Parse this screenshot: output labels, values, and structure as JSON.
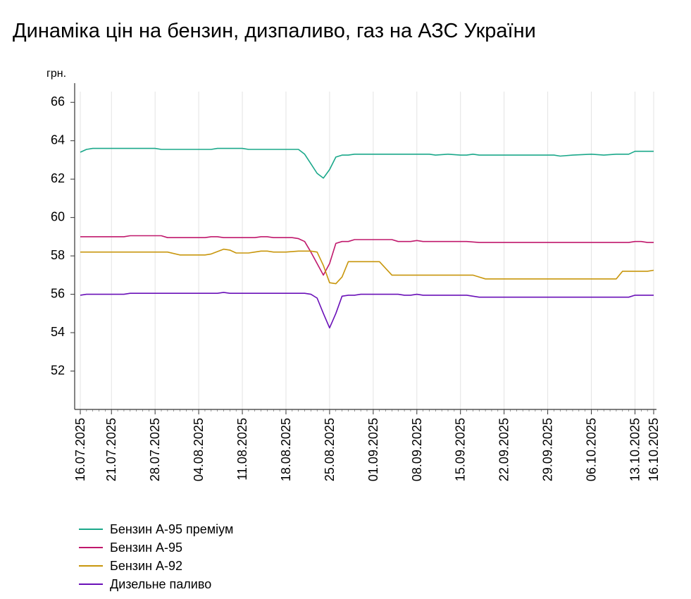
{
  "title": "Динаміка цін на бензин, дизпаливо, газ на АЗС України",
  "chart_data": {
    "type": "line",
    "title": "Динаміка цін на бензин, дизпаливо, газ на АЗС України",
    "ylabel": "грн.",
    "xlabel": "",
    "ylim": [
      50,
      67
    ],
    "yticks": [
      52,
      54,
      56,
      58,
      60,
      62,
      64,
      66
    ],
    "xlim": [
      "2025-07-16",
      "2025-10-16"
    ],
    "xticks": [
      "16.07.2025",
      "21.07.2025",
      "28.07.2025",
      "04.08.2025",
      "11.08.2025",
      "18.08.2025",
      "25.08.2025",
      "01.09.2025",
      "08.09.2025",
      "15.09.2025",
      "22.09.2025",
      "29.09.2025",
      "06.10.2025",
      "13.10.2025",
      "16.10.2025"
    ],
    "grid": "vertical",
    "legend": "bottom-left",
    "series": [
      {
        "name": "Бензин А-95 преміум",
        "color": "#1aa88a",
        "points": [
          [
            "2025-07-16",
            63.4
          ],
          [
            "2025-07-17",
            63.55
          ],
          [
            "2025-07-18",
            63.6
          ],
          [
            "2025-07-28",
            63.6
          ],
          [
            "2025-07-29",
            63.55
          ],
          [
            "2025-08-06",
            63.55
          ],
          [
            "2025-08-07",
            63.6
          ],
          [
            "2025-08-11",
            63.6
          ],
          [
            "2025-08-12",
            63.55
          ],
          [
            "2025-08-20",
            63.55
          ],
          [
            "2025-08-21",
            63.3
          ],
          [
            "2025-08-22",
            62.8
          ],
          [
            "2025-08-23",
            62.3
          ],
          [
            "2025-08-24",
            62.05
          ],
          [
            "2025-08-25",
            62.5
          ],
          [
            "2025-08-26",
            63.15
          ],
          [
            "2025-08-27",
            63.25
          ],
          [
            "2025-08-28",
            63.25
          ],
          [
            "2025-08-29",
            63.3
          ],
          [
            "2025-09-10",
            63.3
          ],
          [
            "2025-09-11",
            63.25
          ],
          [
            "2025-09-13",
            63.3
          ],
          [
            "2025-09-15",
            63.25
          ],
          [
            "2025-09-16",
            63.25
          ],
          [
            "2025-09-17",
            63.3
          ],
          [
            "2025-09-18",
            63.25
          ],
          [
            "2025-09-30",
            63.25
          ],
          [
            "2025-10-01",
            63.2
          ],
          [
            "2025-10-03",
            63.25
          ],
          [
            "2025-10-06",
            63.3
          ],
          [
            "2025-10-08",
            63.25
          ],
          [
            "2025-10-10",
            63.3
          ],
          [
            "2025-10-12",
            63.3
          ],
          [
            "2025-10-13",
            63.45
          ],
          [
            "2025-10-16",
            63.45
          ]
        ]
      },
      {
        "name": "Бензин А-95",
        "color": "#c0186c",
        "points": [
          [
            "2025-07-16",
            59.0
          ],
          [
            "2025-07-23",
            59.0
          ],
          [
            "2025-07-24",
            59.05
          ],
          [
            "2025-07-29",
            59.05
          ],
          [
            "2025-07-30",
            58.95
          ],
          [
            "2025-08-05",
            58.95
          ],
          [
            "2025-08-06",
            59.0
          ],
          [
            "2025-08-07",
            59.0
          ],
          [
            "2025-08-08",
            58.95
          ],
          [
            "2025-08-13",
            58.95
          ],
          [
            "2025-08-14",
            59.0
          ],
          [
            "2025-08-15",
            59.0
          ],
          [
            "2025-08-16",
            58.95
          ],
          [
            "2025-08-19",
            58.95
          ],
          [
            "2025-08-20",
            58.9
          ],
          [
            "2025-08-21",
            58.75
          ],
          [
            "2025-08-22",
            58.2
          ],
          [
            "2025-08-23",
            57.6
          ],
          [
            "2025-08-24",
            57.0
          ],
          [
            "2025-08-25",
            57.6
          ],
          [
            "2025-08-26",
            58.65
          ],
          [
            "2025-08-27",
            58.75
          ],
          [
            "2025-08-28",
            58.75
          ],
          [
            "2025-08-29",
            58.85
          ],
          [
            "2025-09-04",
            58.85
          ],
          [
            "2025-09-05",
            58.75
          ],
          [
            "2025-09-07",
            58.75
          ],
          [
            "2025-09-08",
            58.8
          ],
          [
            "2025-09-09",
            58.75
          ],
          [
            "2025-09-16",
            58.75
          ],
          [
            "2025-09-18",
            58.7
          ],
          [
            "2025-10-12",
            58.7
          ],
          [
            "2025-10-13",
            58.75
          ],
          [
            "2025-10-14",
            58.75
          ],
          [
            "2025-10-15",
            58.7
          ],
          [
            "2025-10-16",
            58.7
          ]
        ]
      },
      {
        "name": "Бензин А-92",
        "color": "#c8960c",
        "points": [
          [
            "2025-07-16",
            58.2
          ],
          [
            "2025-07-30",
            58.2
          ],
          [
            "2025-08-01",
            58.05
          ],
          [
            "2025-08-05",
            58.05
          ],
          [
            "2025-08-06",
            58.1
          ],
          [
            "2025-08-08",
            58.35
          ],
          [
            "2025-08-09",
            58.3
          ],
          [
            "2025-08-10",
            58.15
          ],
          [
            "2025-08-12",
            58.15
          ],
          [
            "2025-08-13",
            58.2
          ],
          [
            "2025-08-14",
            58.25
          ],
          [
            "2025-08-15",
            58.25
          ],
          [
            "2025-08-16",
            58.2
          ],
          [
            "2025-08-18",
            58.2
          ],
          [
            "2025-08-20",
            58.25
          ],
          [
            "2025-08-22",
            58.25
          ],
          [
            "2025-08-23",
            58.2
          ],
          [
            "2025-08-24",
            57.5
          ],
          [
            "2025-08-25",
            56.6
          ],
          [
            "2025-08-26",
            56.55
          ],
          [
            "2025-08-27",
            56.9
          ],
          [
            "2025-08-28",
            57.7
          ],
          [
            "2025-08-29",
            57.7
          ],
          [
            "2025-09-02",
            57.7
          ],
          [
            "2025-09-03",
            57.35
          ],
          [
            "2025-09-04",
            57.0
          ],
          [
            "2025-09-14",
            57.0
          ],
          [
            "2025-09-17",
            57.0
          ],
          [
            "2025-09-18",
            56.9
          ],
          [
            "2025-09-19",
            56.8
          ],
          [
            "2025-10-09",
            56.8
          ],
          [
            "2025-10-10",
            56.8
          ],
          [
            "2025-10-11",
            57.2
          ],
          [
            "2025-10-12",
            57.2
          ],
          [
            "2025-10-15",
            57.2
          ],
          [
            "2025-10-16",
            57.25
          ]
        ]
      },
      {
        "name": "Дизельне паливо",
        "color": "#6a10b8",
        "points": [
          [
            "2025-07-16",
            55.95
          ],
          [
            "2025-07-17",
            56.0
          ],
          [
            "2025-07-23",
            56.0
          ],
          [
            "2025-07-24",
            56.05
          ],
          [
            "2025-08-07",
            56.05
          ],
          [
            "2025-08-08",
            56.1
          ],
          [
            "2025-08-09",
            56.05
          ],
          [
            "2025-08-21",
            56.05
          ],
          [
            "2025-08-22",
            56.0
          ],
          [
            "2025-08-23",
            55.8
          ],
          [
            "2025-08-24",
            55.0
          ],
          [
            "2025-08-25",
            54.25
          ],
          [
            "2025-08-26",
            55.0
          ],
          [
            "2025-08-27",
            55.9
          ],
          [
            "2025-08-28",
            55.95
          ],
          [
            "2025-08-29",
            55.95
          ],
          [
            "2025-08-30",
            56.0
          ],
          [
            "2025-09-05",
            56.0
          ],
          [
            "2025-09-06",
            55.95
          ],
          [
            "2025-09-07",
            55.95
          ],
          [
            "2025-09-08",
            56.0
          ],
          [
            "2025-09-09",
            55.95
          ],
          [
            "2025-09-16",
            55.95
          ],
          [
            "2025-09-18",
            55.85
          ],
          [
            "2025-10-12",
            55.85
          ],
          [
            "2025-10-13",
            55.95
          ],
          [
            "2025-10-16",
            55.95
          ]
        ]
      }
    ]
  }
}
